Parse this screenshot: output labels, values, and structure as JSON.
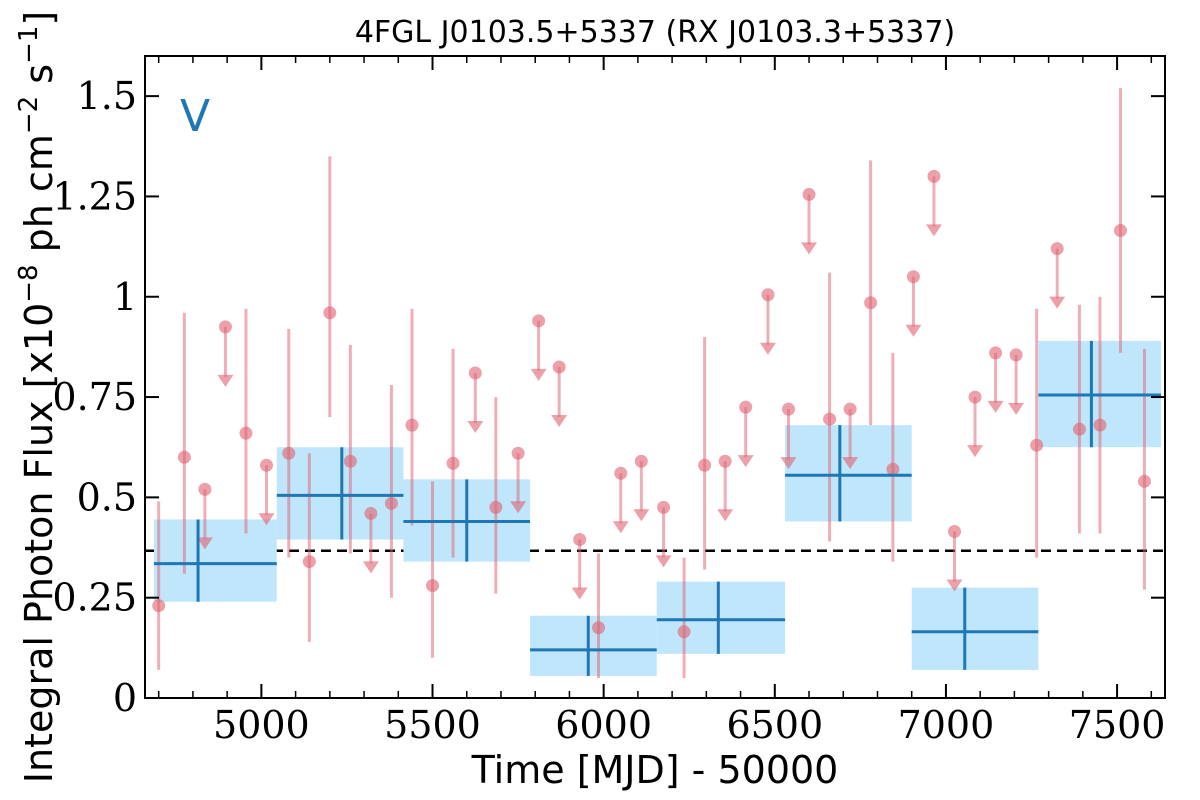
{
  "chart_data": {
    "type": "scatter",
    "title": "4FGL J0103.5+5337 (RX J0103.3+5337)",
    "xlabel": "Time [MJD] - 50000",
    "ylabel": "Integral Photon Flux [x10^-8 ph cm^-2 s^-1]",
    "ylabel_parts": {
      "main": "Integral Photon Flux [x10",
      "exp1": "−8",
      "mid": " ph cm",
      "exp2": "−2",
      "mid2": " s",
      "exp3": "−1",
      "end": "]"
    },
    "panel_label": "V",
    "xlim": [
      4660,
      7640
    ],
    "ylim": [
      0,
      1.6
    ],
    "x_ticks": [
      5000,
      5500,
      6000,
      6500,
      7000,
      7500
    ],
    "y_ticks": [
      0,
      0.25,
      0.5,
      0.75,
      1,
      1.25,
      1.5
    ],
    "x_tick_labels": [
      "5000",
      "5500",
      "6000",
      "6500",
      "7000",
      "7500"
    ],
    "y_tick_labels": [
      "0",
      "0.25",
      "0.5",
      "0.75",
      "1",
      "1.25",
      "1.5"
    ],
    "mean_flux": 0.367,
    "colors": {
      "points": "#e06070",
      "bins_fill": "#bfe6fb",
      "bins_line": "#1f77b4",
      "label": "#1f77b4",
      "mean": "#000000"
    },
    "short_bins": {
      "detections": [
        {
          "x": 4700,
          "y": 0.23,
          "ylo": 0.07,
          "yhi": 0.49
        },
        {
          "x": 4775,
          "y": 0.6,
          "ylo": 0.31,
          "yhi": 0.96
        },
        {
          "x": 4955,
          "y": 0.66,
          "ylo": 0.41,
          "yhi": 0.97
        },
        {
          "x": 5080,
          "y": 0.61,
          "ylo": 0.35,
          "yhi": 0.92
        },
        {
          "x": 5140,
          "y": 0.34,
          "ylo": 0.14,
          "yhi": 0.61
        },
        {
          "x": 5200,
          "y": 0.96,
          "ylo": 0.7,
          "yhi": 1.35
        },
        {
          "x": 5260,
          "y": 0.59,
          "ylo": 0.36,
          "yhi": 0.88
        },
        {
          "x": 5380,
          "y": 0.485,
          "ylo": 0.25,
          "yhi": 0.78
        },
        {
          "x": 5440,
          "y": 0.68,
          "ylo": 0.43,
          "yhi": 0.97
        },
        {
          "x": 5500,
          "y": 0.28,
          "ylo": 0.1,
          "yhi": 0.54
        },
        {
          "x": 5560,
          "y": 0.585,
          "ylo": 0.35,
          "yhi": 0.87
        },
        {
          "x": 5685,
          "y": 0.475,
          "ylo": 0.26,
          "yhi": 0.75
        },
        {
          "x": 5985,
          "y": 0.175,
          "ylo": 0.05,
          "yhi": 0.36
        },
        {
          "x": 6235,
          "y": 0.165,
          "ylo": 0.05,
          "yhi": 0.35
        },
        {
          "x": 6295,
          "y": 0.58,
          "ylo": 0.32,
          "yhi": 0.9
        },
        {
          "x": 6660,
          "y": 0.695,
          "ylo": 0.39,
          "yhi": 1.06
        },
        {
          "x": 6780,
          "y": 0.985,
          "ylo": 0.68,
          "yhi": 1.34
        },
        {
          "x": 6845,
          "y": 0.57,
          "ylo": 0.34,
          "yhi": 0.86
        },
        {
          "x": 7265,
          "y": 0.63,
          "ylo": 0.35,
          "yhi": 0.97
        },
        {
          "x": 7390,
          "y": 0.67,
          "ylo": 0.41,
          "yhi": 0.98
        },
        {
          "x": 7450,
          "y": 0.68,
          "ylo": 0.41,
          "yhi": 1.0
        },
        {
          "x": 7510,
          "y": 1.165,
          "ylo": 0.86,
          "yhi": 1.52
        },
        {
          "x": 7580,
          "y": 0.54,
          "ylo": 0.27,
          "yhi": 0.87
        }
      ],
      "upper_limits": [
        {
          "x": 4835,
          "y": 0.52
        },
        {
          "x": 4895,
          "y": 0.925
        },
        {
          "x": 5015,
          "y": 0.58
        },
        {
          "x": 5320,
          "y": 0.46
        },
        {
          "x": 5625,
          "y": 0.81
        },
        {
          "x": 5750,
          "y": 0.61
        },
        {
          "x": 5810,
          "y": 0.94
        },
        {
          "x": 5870,
          "y": 0.825
        },
        {
          "x": 5930,
          "y": 0.395
        },
        {
          "x": 6050,
          "y": 0.56
        },
        {
          "x": 6110,
          "y": 0.59
        },
        {
          "x": 6175,
          "y": 0.475
        },
        {
          "x": 6355,
          "y": 0.59
        },
        {
          "x": 6415,
          "y": 0.725
        },
        {
          "x": 6480,
          "y": 1.005
        },
        {
          "x": 6540,
          "y": 0.72
        },
        {
          "x": 6600,
          "y": 1.255
        },
        {
          "x": 6720,
          "y": 0.72
        },
        {
          "x": 6905,
          "y": 1.05
        },
        {
          "x": 6965,
          "y": 1.3
        },
        {
          "x": 7025,
          "y": 0.415
        },
        {
          "x": 7085,
          "y": 0.75
        },
        {
          "x": 7145,
          "y": 0.86
        },
        {
          "x": 7205,
          "y": 0.855
        },
        {
          "x": 7325,
          "y": 1.12
        }
      ]
    },
    "long_bins": [
      {
        "x0": 4670,
        "x1": 5045,
        "y": 0.335,
        "ylo": 0.24,
        "yhi": 0.445,
        "xc": 4815,
        "box_lo": 0.24,
        "box_hi": 0.445
      },
      {
        "x0": 5045,
        "x1": 5415,
        "y": 0.505,
        "ylo": 0.395,
        "yhi": 0.625,
        "xc": 5235,
        "box_lo": 0.395,
        "box_hi": 0.625
      },
      {
        "x0": 5415,
        "x1": 5785,
        "y": 0.44,
        "ylo": 0.34,
        "yhi": 0.545,
        "xc": 5600,
        "box_lo": 0.34,
        "box_hi": 0.545
      },
      {
        "x0": 5785,
        "x1": 6155,
        "y": 0.12,
        "ylo": 0.055,
        "yhi": 0.205,
        "xc": 5955,
        "box_lo": 0.055,
        "box_hi": 0.205
      },
      {
        "x0": 6155,
        "x1": 6530,
        "y": 0.195,
        "ylo": 0.11,
        "yhi": 0.29,
        "xc": 6335,
        "box_lo": 0.11,
        "box_hi": 0.29
      },
      {
        "x0": 6530,
        "x1": 6900,
        "y": 0.555,
        "ylo": 0.44,
        "yhi": 0.68,
        "xc": 6690,
        "box_lo": 0.44,
        "box_hi": 0.68
      },
      {
        "x0": 6900,
        "x1": 7270,
        "y": 0.165,
        "ylo": 0.07,
        "yhi": 0.275,
        "xc": 7055,
        "box_lo": 0.07,
        "box_hi": 0.275
      },
      {
        "x0": 7270,
        "x1": 7640,
        "y": 0.755,
        "ylo": 0.625,
        "yhi": 0.89,
        "xc": 7425,
        "box_lo": 0.625,
        "box_hi": 0.89
      }
    ],
    "grid": false,
    "legend": "none"
  }
}
